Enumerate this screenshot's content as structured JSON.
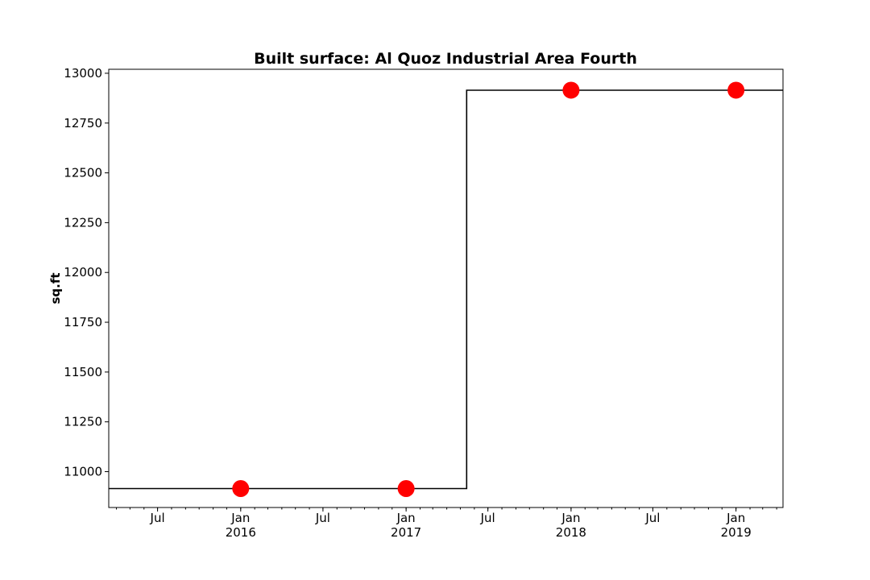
{
  "chart_data": {
    "type": "line",
    "title": "Built surface: Al Quoz Industrial Area Fourth",
    "xlabel": "",
    "ylabel": "sq.ft",
    "x_type": "date",
    "xlim": [
      "2015-03-15",
      "2019-04-15"
    ],
    "ylim": [
      10820,
      13020
    ],
    "y_ticks": [
      11000,
      11250,
      11500,
      11750,
      12000,
      12250,
      12500,
      12750,
      13000
    ],
    "x_tick_labels": [
      {
        "date": "2015-07-01",
        "label": "Jul",
        "year": ""
      },
      {
        "date": "2016-01-01",
        "label": "Jan",
        "year": "2016"
      },
      {
        "date": "2016-07-01",
        "label": "Jul",
        "year": ""
      },
      {
        "date": "2017-01-01",
        "label": "Jan",
        "year": "2017"
      },
      {
        "date": "2017-07-01",
        "label": "Jul",
        "year": ""
      },
      {
        "date": "2018-01-01",
        "label": "Jan",
        "year": "2018"
      },
      {
        "date": "2018-07-01",
        "label": "Jul",
        "year": ""
      },
      {
        "date": "2019-01-01",
        "label": "Jan",
        "year": "2019"
      }
    ],
    "grid": false,
    "step_line": {
      "color": "#000000",
      "points": [
        {
          "x": "2015-03-15",
          "y": 10915
        },
        {
          "x": "2017-05-15",
          "y": 10915
        },
        {
          "x": "2017-05-15",
          "y": 12915
        },
        {
          "x": "2019-04-15",
          "y": 12915
        }
      ]
    },
    "markers": {
      "color": "#ff0000",
      "points": [
        {
          "x": "2016-01-01",
          "y": 10915
        },
        {
          "x": "2017-01-01",
          "y": 10915
        },
        {
          "x": "2018-01-01",
          "y": 12915
        },
        {
          "x": "2019-01-01",
          "y": 12915
        }
      ]
    }
  }
}
